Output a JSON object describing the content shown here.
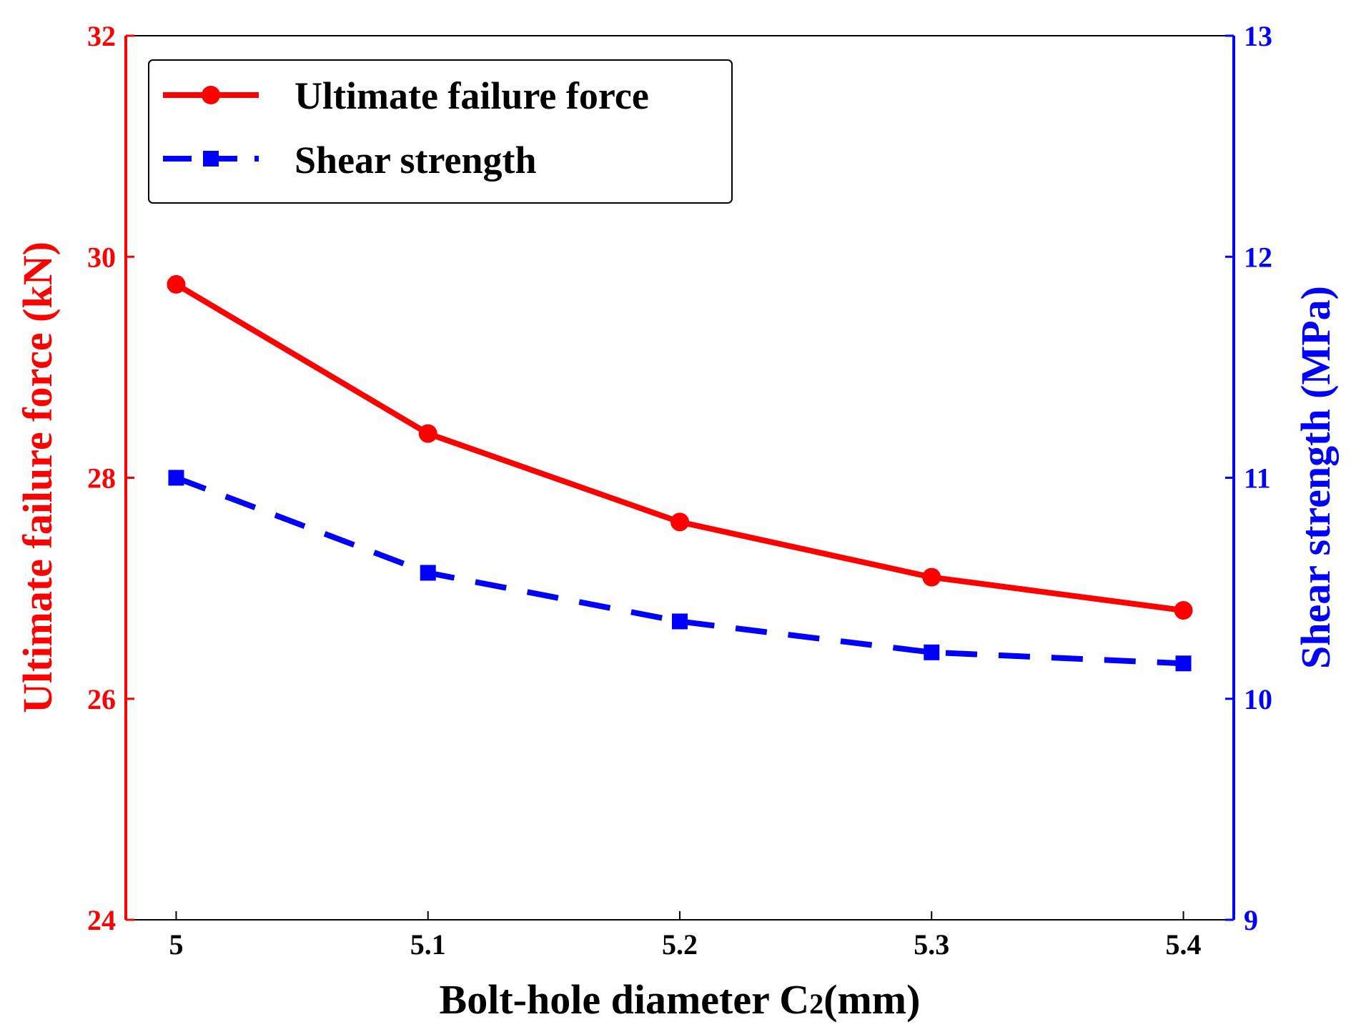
{
  "chart_data": {
    "type": "line",
    "x": [
      5,
      5.1,
      5.2,
      5.3,
      5.4
    ],
    "x_tick_labels": [
      "5",
      "5.1",
      "5.2",
      "5.3",
      "5.4"
    ],
    "xlim": [
      4.98,
      5.42
    ],
    "xlabel_main": "Bolt-hole diameter C",
    "xlabel_sub": "2",
    "xlabel_tail": "(mm)",
    "y_left": {
      "label": "Ultimate failure force (kN)",
      "lim": [
        24,
        32
      ],
      "ticks": [
        24,
        26,
        28,
        30,
        32
      ],
      "tick_labels": [
        "24",
        "26",
        "28",
        "30",
        "32"
      ],
      "color": "#ff0000"
    },
    "y_right": {
      "label": "Shear strength (MPa)",
      "lim": [
        9,
        13
      ],
      "ticks": [
        9,
        10,
        11,
        12,
        13
      ],
      "tick_labels": [
        "9",
        "10",
        "11",
        "12",
        "13"
      ],
      "color": "#0000ff"
    },
    "series": [
      {
        "name": "Ultimate failure force",
        "axis": "left",
        "values": [
          29.75,
          28.4,
          27.6,
          27.1,
          26.8
        ],
        "color": "#ff0000",
        "style": "solid",
        "marker": "circle"
      },
      {
        "name": "Shear strength",
        "axis": "right",
        "values": [
          11.0,
          10.57,
          10.35,
          10.21,
          10.16
        ],
        "color": "#0000ff",
        "style": "dashed",
        "marker": "square"
      }
    ],
    "legend_position": "top-left",
    "grid": false
  }
}
